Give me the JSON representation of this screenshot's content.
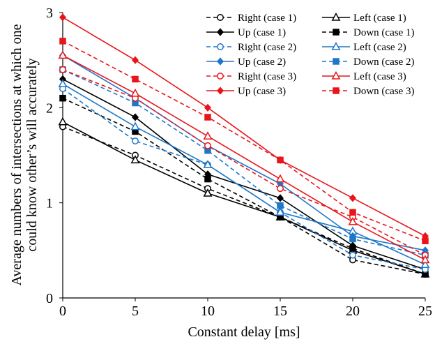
{
  "chart_data": {
    "type": "line",
    "xlabel": "Constant delay [ms]",
    "ylabel_lines": [
      "Average numbers of intersections at which one",
      "could know other’s will accurately"
    ],
    "x": [
      0,
      5,
      10,
      15,
      20,
      25
    ],
    "xlim": [
      0,
      25
    ],
    "ylim": [
      0,
      3
    ],
    "x_ticks": [
      "0",
      "5",
      "10",
      "15",
      "20",
      "25"
    ],
    "y_ticks": [
      "0",
      "1",
      "2",
      "3"
    ],
    "grid": false,
    "legend_position": "top-right",
    "series": [
      {
        "name": "Right (case 1)",
        "color": "#000000",
        "dash": "dashed",
        "marker": "circle-open",
        "values": [
          1.8,
          1.5,
          1.15,
          0.85,
          0.4,
          0.25
        ]
      },
      {
        "name": "Left (case 1)",
        "color": "#000000",
        "dash": "solid",
        "marker": "triangle-open",
        "values": [
          1.85,
          1.45,
          1.1,
          0.85,
          0.5,
          0.25
        ]
      },
      {
        "name": "Up (case 1)",
        "color": "#000000",
        "dash": "solid",
        "marker": "diamond-filled",
        "values": [
          2.3,
          1.9,
          1.3,
          1.05,
          0.55,
          0.3
        ]
      },
      {
        "name": "Down (case 1)",
        "color": "#000000",
        "dash": "dashed",
        "marker": "square-filled",
        "values": [
          2.1,
          1.75,
          1.25,
          0.85,
          0.52,
          0.25
        ]
      },
      {
        "name": "Right (case 2)",
        "color": "#1f77c8",
        "dash": "dashed",
        "marker": "circle-open",
        "values": [
          2.2,
          1.65,
          1.4,
          0.9,
          0.45,
          0.3
        ]
      },
      {
        "name": "Left (case 2)",
        "color": "#1f77c8",
        "dash": "solid",
        "marker": "triangle-open",
        "values": [
          2.25,
          1.8,
          1.4,
          0.9,
          0.7,
          0.35
        ]
      },
      {
        "name": "Up (case 2)",
        "color": "#1f77c8",
        "dash": "solid",
        "marker": "diamond-filled",
        "values": [
          2.55,
          2.1,
          1.6,
          1.2,
          0.65,
          0.5
        ]
      },
      {
        "name": "Down (case 2)",
        "color": "#1f77c8",
        "dash": "dashed",
        "marker": "square-filled",
        "values": [
          2.4,
          2.05,
          1.55,
          0.97,
          0.62,
          0.45
        ]
      },
      {
        "name": "Right (case 3)",
        "color": "#e8151b",
        "dash": "dashed",
        "marker": "circle-open",
        "values": [
          2.4,
          2.1,
          1.6,
          1.15,
          0.85,
          0.45
        ]
      },
      {
        "name": "Left (case 3)",
        "color": "#e8151b",
        "dash": "solid",
        "marker": "triangle-open",
        "values": [
          2.55,
          2.15,
          1.7,
          1.25,
          0.8,
          0.4
        ]
      },
      {
        "name": "Up (case 3)",
        "color": "#e8151b",
        "dash": "solid",
        "marker": "diamond-filled",
        "values": [
          2.95,
          2.5,
          2.0,
          1.45,
          1.05,
          0.65
        ]
      },
      {
        "name": "Down (case 3)",
        "color": "#e8151b",
        "dash": "dashed",
        "marker": "square-filled",
        "values": [
          2.7,
          2.3,
          1.9,
          1.45,
          0.9,
          0.6
        ]
      }
    ]
  }
}
